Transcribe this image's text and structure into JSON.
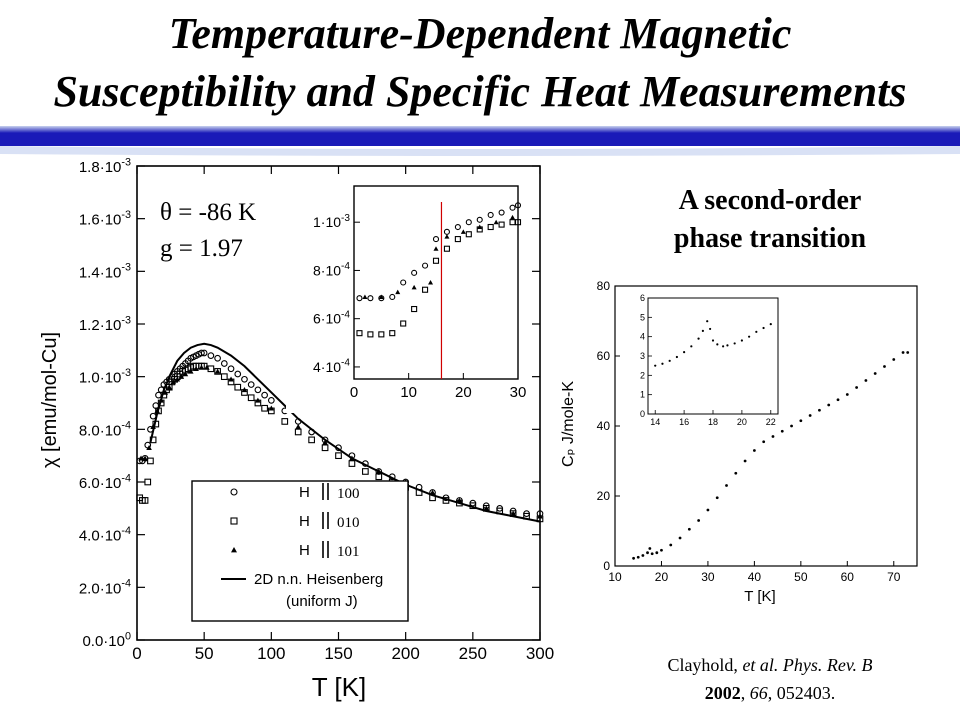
{
  "slide": {
    "title_line1": "Temperature-Dependent Magnetic",
    "title_line2": "Susceptibility and Specific Heat Measurements",
    "subheading_line1": "A second-order",
    "subheading_line2": "phase transition",
    "citation": {
      "authors": "Clayhold, ",
      "etal": "et al. Phys. Rev. B",
      "year": "2002",
      "rest": ", ",
      "volume": "66",
      "pages": ", 052403."
    },
    "colors": {
      "banner_blue": "#1a1ab8",
      "banner_light": "#b8c6ea",
      "transition_line": "#d00000"
    }
  },
  "chart_data": [
    {
      "type": "scatter",
      "title": "",
      "xlabel": "T [K]",
      "ylabel": "χ [emu/mol-Cu]",
      "xlim": [
        0,
        300
      ],
      "ylim": [
        0,
        0.0018
      ],
      "x_ticks": [
        "0",
        "50",
        "100",
        "150",
        "200",
        "250",
        "300"
      ],
      "y_ticks": [
        {
          "m": "0.0·10",
          "e": "0"
        },
        {
          "m": "2.0·10",
          "e": "-4"
        },
        {
          "m": "4.0·10",
          "e": "-4"
        },
        {
          "m": "6.0·10",
          "e": "-4"
        },
        {
          "m": "8.0·10",
          "e": "-4"
        },
        {
          "m": "1.0·10",
          "e": "-3"
        },
        {
          "m": "1.2·10",
          "e": "-3"
        },
        {
          "m": "1.4·10",
          "e": "-3"
        },
        {
          "m": "1.6·10",
          "e": "-3"
        },
        {
          "m": "1.8·10",
          "e": "-3"
        }
      ],
      "annotations": [
        "θ = -86 K",
        "g = 1.97"
      ],
      "legend_position": "bottom-center",
      "legend": [
        {
          "label": "H",
          "dir": "100",
          "marker": "circle"
        },
        {
          "label": "H",
          "dir": "010",
          "marker": "square"
        },
        {
          "label": "H",
          "dir": "101",
          "marker": "triangle"
        },
        {
          "label": "2D n.n. Heisenberg",
          "label2": "(uniform J)",
          "marker": "line"
        }
      ],
      "series": [
        {
          "name": "H || 100",
          "marker": "circle",
          "x": [
            2,
            4,
            6,
            8,
            10,
            12,
            14,
            16,
            18,
            20,
            22,
            24,
            26,
            28,
            30,
            32,
            34,
            36,
            38,
            40,
            42,
            44,
            46,
            48,
            50,
            55,
            60,
            65,
            70,
            75,
            80,
            85,
            90,
            95,
            100,
            110,
            120,
            130,
            140,
            150,
            160,
            170,
            180,
            190,
            200,
            210,
            220,
            230,
            240,
            250,
            260,
            270,
            280,
            290,
            300
          ],
          "y": [
            0.00068,
            0.00068,
            0.00069,
            0.00074,
            0.0008,
            0.00085,
            0.00089,
            0.00093,
            0.00095,
            0.00097,
            0.00098,
            0.00099,
            0.001,
            0.00101,
            0.00102,
            0.00103,
            0.00104,
            0.00105,
            0.00106,
            0.00107,
            0.001075,
            0.00108,
            0.001085,
            0.00109,
            0.00109,
            0.00108,
            0.00107,
            0.00105,
            0.00103,
            0.00101,
            0.00099,
            0.00097,
            0.00095,
            0.00093,
            0.00091,
            0.00087,
            0.00083,
            0.00079,
            0.00076,
            0.00073,
            0.0007,
            0.00067,
            0.00064,
            0.00062,
            0.0006,
            0.00058,
            0.00056,
            0.00054,
            0.00053,
            0.00052,
            0.00051,
            0.0005,
            0.00049,
            0.00048,
            0.00048
          ]
        },
        {
          "name": "H || 010",
          "marker": "square",
          "x": [
            2,
            4,
            6,
            8,
            10,
            12,
            14,
            16,
            18,
            20,
            22,
            24,
            26,
            28,
            30,
            32,
            34,
            36,
            38,
            40,
            42,
            44,
            46,
            48,
            50,
            55,
            60,
            65,
            70,
            75,
            80,
            85,
            90,
            95,
            100,
            110,
            120,
            130,
            140,
            150,
            160,
            170,
            180,
            190,
            200,
            210,
            220,
            230,
            240,
            250,
            260,
            270,
            280,
            290,
            300
          ],
          "y": [
            0.00054,
            0.00053,
            0.00053,
            0.0006,
            0.00068,
            0.00076,
            0.00082,
            0.00087,
            0.0009,
            0.00093,
            0.00095,
            0.00096,
            0.00098,
            0.00099,
            0.001,
            0.00101,
            0.00102,
            0.001025,
            0.00103,
            0.001035,
            0.00104,
            0.00104,
            0.00104,
            0.00104,
            0.00104,
            0.00103,
            0.00102,
            0.001,
            0.00098,
            0.00096,
            0.00094,
            0.00092,
            0.0009,
            0.00088,
            0.00087,
            0.00083,
            0.00079,
            0.00076,
            0.00073,
            0.0007,
            0.00067,
            0.00064,
            0.00062,
            0.0006,
            0.00058,
            0.00056,
            0.00054,
            0.00053,
            0.00052,
            0.00051,
            0.0005,
            0.00049,
            0.00048,
            0.00047,
            0.00046
          ]
        },
        {
          "name": "H || 101",
          "marker": "triangle",
          "x": [
            3,
            6,
            9,
            12,
            15,
            18,
            21,
            24,
            27,
            30,
            33,
            36,
            40,
            44,
            48,
            52,
            60,
            70,
            80,
            90,
            100,
            120,
            140,
            160,
            180,
            200,
            220,
            240,
            260,
            280,
            300
          ],
          "y": [
            0.00069,
            0.00069,
            0.00073,
            0.00081,
            0.00087,
            0.00091,
            0.00094,
            0.00096,
            0.00098,
            0.00099,
            0.001,
            0.00101,
            0.00102,
            0.00103,
            0.001035,
            0.001035,
            0.00102,
            0.00099,
            0.00095,
            0.00091,
            0.00088,
            0.00081,
            0.00075,
            0.00069,
            0.00064,
            0.0006,
            0.00056,
            0.00053,
            0.0005,
            0.00048,
            0.00047
          ]
        },
        {
          "name": "2D n.n. Heisenberg (uniform J)",
          "marker": "line",
          "x": [
            10,
            15,
            20,
            25,
            30,
            35,
            40,
            45,
            50,
            55,
            60,
            70,
            80,
            90,
            100,
            110,
            120,
            140,
            160,
            180,
            200,
            220,
            240,
            260,
            280,
            300
          ],
          "y": [
            0.00075,
            0.00086,
            0.00095,
            0.00101,
            0.00106,
            0.00109,
            0.00111,
            0.00112,
            0.001125,
            0.00112,
            0.00111,
            0.00108,
            0.00104,
            0.00099,
            0.00094,
            0.00089,
            0.00084,
            0.00076,
            0.00069,
            0.00064,
            0.00059,
            0.00055,
            0.00052,
            0.00049,
            0.00047,
            0.00045
          ]
        }
      ]
    },
    {
      "type": "scatter",
      "title": "",
      "xlabel": "",
      "ylabel": "",
      "xlim": [
        0,
        30
      ],
      "ylim": [
        0.00035,
        0.00115
      ],
      "x_ticks": [
        "0",
        "10",
        "20",
        "30"
      ],
      "y_ticks": [
        {
          "m": "4·10",
          "e": "-4"
        },
        {
          "m": "6·10",
          "e": "-4"
        },
        {
          "m": "8·10",
          "e": "-4"
        },
        {
          "m": "1·10",
          "e": "-3"
        }
      ],
      "transition_x": 16,
      "series": [
        {
          "name": "H || 100",
          "marker": "circle",
          "x": [
            1,
            3,
            5,
            7,
            9,
            11,
            13,
            15,
            17,
            19,
            21,
            23,
            25,
            27,
            29,
            30
          ],
          "y": [
            0.000685,
            0.000685,
            0.000685,
            0.00069,
            0.00075,
            0.00079,
            0.00082,
            0.00093,
            0.00096,
            0.00098,
            0.001,
            0.00101,
            0.00103,
            0.00104,
            0.00106,
            0.00107
          ]
        },
        {
          "name": "H || 010",
          "marker": "square",
          "x": [
            1,
            3,
            5,
            7,
            9,
            11,
            13,
            15,
            17,
            19,
            21,
            23,
            25,
            27,
            29,
            30
          ],
          "y": [
            0.00054,
            0.000535,
            0.000535,
            0.00054,
            0.00058,
            0.00064,
            0.00072,
            0.00084,
            0.00089,
            0.00093,
            0.00095,
            0.00097,
            0.00098,
            0.00099,
            0.001,
            0.001
          ]
        },
        {
          "name": "H || 101",
          "marker": "triangle",
          "x": [
            2,
            5,
            8,
            11,
            14,
            15,
            17,
            20,
            23,
            26,
            29
          ],
          "y": [
            0.00069,
            0.00069,
            0.00071,
            0.00073,
            0.00075,
            0.00089,
            0.00094,
            0.00096,
            0.00098,
            0.001,
            0.00102
          ]
        }
      ]
    },
    {
      "type": "scatter",
      "title": "",
      "xlabel": "T [K]",
      "ylabel": "Cₚ J/mole-K",
      "xlim": [
        10,
        75
      ],
      "ylim": [
        0,
        80
      ],
      "x_ticks": [
        "10",
        "20",
        "30",
        "40",
        "50",
        "60",
        "70"
      ],
      "y_ticks": [
        "0",
        "20",
        "40",
        "60",
        "80"
      ],
      "series": [
        {
          "name": "Cp",
          "marker": "dot",
          "x": [
            14,
            15,
            16,
            17,
            17.5,
            18,
            19,
            20,
            22,
            24,
            26,
            28,
            30,
            32,
            34,
            36,
            38,
            40,
            42,
            44,
            46,
            48,
            50,
            52,
            54,
            56,
            58,
            60,
            62,
            64,
            66,
            68,
            70,
            72,
            73
          ],
          "y": [
            2.2,
            2.5,
            3.0,
            3.8,
            5.0,
            3.5,
            3.8,
            4.5,
            6,
            8,
            10.5,
            13,
            16,
            19.5,
            23,
            26.5,
            30,
            33,
            35.5,
            37,
            38.5,
            40,
            41.5,
            43,
            44.5,
            46,
            47.5,
            49,
            51,
            53,
            55,
            57,
            59,
            61,
            61
          ]
        }
      ]
    },
    {
      "type": "scatter",
      "title": "",
      "xlabel": "",
      "ylabel": "",
      "xlim": [
        13.5,
        22.5
      ],
      "ylim": [
        0,
        6
      ],
      "x_ticks": [
        "14",
        "16",
        "18",
        "20",
        "22"
      ],
      "y_ticks": [
        "0",
        "1",
        "2",
        "3",
        "4",
        "5",
        "6"
      ],
      "series": [
        {
          "name": "Cp inset",
          "marker": "dot",
          "x": [
            14,
            14.5,
            15,
            15.5,
            16,
            16.5,
            17,
            17.3,
            17.6,
            17.8,
            18.0,
            18.3,
            18.7,
            19,
            19.5,
            20,
            20.5,
            21,
            21.5,
            22
          ],
          "y": [
            2.5,
            2.6,
            2.75,
            2.95,
            3.2,
            3.5,
            3.9,
            4.3,
            4.8,
            4.4,
            3.8,
            3.6,
            3.5,
            3.55,
            3.65,
            3.8,
            4.0,
            4.25,
            4.45,
            4.65
          ]
        }
      ]
    }
  ]
}
